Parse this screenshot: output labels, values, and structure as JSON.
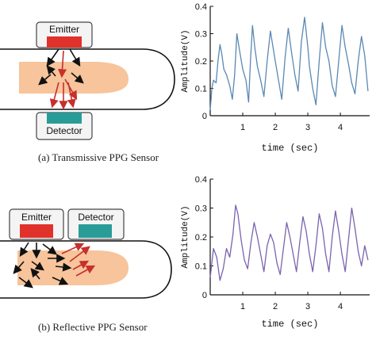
{
  "panels": [
    {
      "caption": "(a) Transmissive PPG Sensor",
      "emitter_label": "Emitter",
      "detector_label": "Detector"
    },
    {
      "caption": "(b) Reflective PPG Sensor",
      "emitter_label": "Emitter",
      "detector_label": "Detector"
    }
  ],
  "colors": {
    "finger_skin": "#f7c49b",
    "emitter": "#e0322b",
    "detector": "#2a9c98",
    "arrow_black": "#111111",
    "arrow_red": "#c6302d",
    "trace_a": "#5a88b3",
    "trace_b": "#7a63ad"
  },
  "chart_data": [
    {
      "type": "line",
      "xlabel": "time (sec)",
      "ylabel": "Amplitude(V)",
      "xlim": [
        0,
        4.9
      ],
      "ylim": [
        0,
        0.4
      ],
      "xticks": [
        1,
        2,
        3,
        4
      ],
      "yticks": [
        0,
        0.1,
        0.2,
        0.3,
        0.4
      ],
      "series": [
        {
          "x": [
            0.0,
            0.05,
            0.1,
            0.18,
            0.24,
            0.3,
            0.35,
            0.42,
            0.5,
            0.6,
            0.68,
            0.75,
            0.82,
            0.9,
            1.0,
            1.1,
            1.18,
            1.24,
            1.3,
            1.37,
            1.45,
            1.55,
            1.65,
            1.75,
            1.85,
            1.93,
            2.0,
            2.1,
            2.2,
            2.3,
            2.4,
            2.5,
            2.6,
            2.7,
            2.8,
            2.9,
            3.0,
            3.05,
            3.15,
            3.25,
            3.35,
            3.45,
            3.55,
            3.65,
            3.75,
            3.85,
            3.95,
            4.05,
            4.15,
            4.25,
            4.35,
            4.45,
            4.55,
            4.65,
            4.75,
            4.85
          ],
          "y": [
            0.02,
            0.1,
            0.13,
            0.12,
            0.2,
            0.26,
            0.23,
            0.17,
            0.15,
            0.11,
            0.06,
            0.15,
            0.3,
            0.24,
            0.17,
            0.13,
            0.05,
            0.21,
            0.33,
            0.25,
            0.18,
            0.13,
            0.07,
            0.2,
            0.31,
            0.25,
            0.2,
            0.13,
            0.06,
            0.21,
            0.32,
            0.23,
            0.15,
            0.09,
            0.27,
            0.36,
            0.25,
            0.18,
            0.1,
            0.04,
            0.2,
            0.34,
            0.25,
            0.2,
            0.11,
            0.07,
            0.2,
            0.33,
            0.25,
            0.19,
            0.12,
            0.08,
            0.2,
            0.29,
            0.22,
            0.09
          ]
        }
      ]
    },
    {
      "type": "line",
      "xlabel": "time (sec)",
      "ylabel": "Amplitude(V)",
      "xlim": [
        0,
        4.9
      ],
      "ylim": [
        0,
        0.4
      ],
      "xticks": [
        1,
        2,
        3,
        4
      ],
      "yticks": [
        0,
        0.1,
        0.2,
        0.3,
        0.4
      ],
      "series": [
        {
          "x": [
            0.0,
            0.1,
            0.2,
            0.3,
            0.4,
            0.5,
            0.6,
            0.7,
            0.78,
            0.85,
            0.95,
            1.05,
            1.15,
            1.25,
            1.35,
            1.45,
            1.55,
            1.65,
            1.75,
            1.85,
            1.95,
            2.05,
            2.15,
            2.25,
            2.35,
            2.45,
            2.55,
            2.65,
            2.75,
            2.85,
            2.95,
            3.05,
            3.15,
            3.25,
            3.35,
            3.45,
            3.55,
            3.65,
            3.75,
            3.85,
            3.95,
            4.05,
            4.15,
            4.25,
            4.35,
            4.45,
            4.55,
            4.65,
            4.75,
            4.85
          ],
          "y": [
            0.06,
            0.16,
            0.13,
            0.05,
            0.09,
            0.16,
            0.13,
            0.21,
            0.31,
            0.28,
            0.19,
            0.12,
            0.09,
            0.18,
            0.25,
            0.2,
            0.14,
            0.08,
            0.17,
            0.21,
            0.18,
            0.11,
            0.07,
            0.16,
            0.25,
            0.2,
            0.14,
            0.08,
            0.18,
            0.27,
            0.22,
            0.14,
            0.08,
            0.17,
            0.28,
            0.23,
            0.14,
            0.08,
            0.2,
            0.29,
            0.22,
            0.14,
            0.08,
            0.19,
            0.3,
            0.23,
            0.15,
            0.1,
            0.17,
            0.12
          ]
        }
      ]
    }
  ]
}
